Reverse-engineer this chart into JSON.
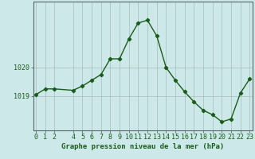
{
  "x": [
    0,
    1,
    2,
    4,
    5,
    6,
    7,
    8,
    9,
    10,
    11,
    12,
    13,
    14,
    15,
    16,
    17,
    18,
    19,
    20,
    21,
    22,
    23
  ],
  "y": [
    1019.05,
    1019.25,
    1019.25,
    1019.2,
    1019.35,
    1019.55,
    1019.75,
    1020.3,
    1020.3,
    1021.0,
    1021.55,
    1021.65,
    1021.1,
    1020.0,
    1019.55,
    1019.15,
    1018.8,
    1018.5,
    1018.35,
    1018.1,
    1018.2,
    1019.1,
    1019.6
  ],
  "line_color": "#1a5c1a",
  "marker": "D",
  "marker_size": 2.2,
  "linewidth": 1.0,
  "background_color": "#cce8e8",
  "plot_background": "#cce8e8",
  "grid_color": "#aabbbb",
  "xlabel": "Graphe pression niveau de la mer (hPa)",
  "xlabel_color": "#1a5c1a",
  "xlabel_fontsize": 6.5,
  "tick_label_color": "#1a5c1a",
  "tick_fontsize": 6.0,
  "ylim": [
    1017.8,
    1022.3
  ],
  "ytick_values": [
    1019,
    1020
  ],
  "xtick_positions": [
    0,
    1,
    2,
    4,
    5,
    6,
    7,
    8,
    9,
    10,
    11,
    12,
    13,
    14,
    15,
    16,
    17,
    18,
    19,
    20,
    21,
    22,
    23
  ],
  "xtick_labels": [
    "0",
    "1",
    "2",
    "4",
    "5",
    "6",
    "7",
    "8",
    "9",
    "10",
    "11",
    "12",
    "13",
    "14",
    "15",
    "16",
    "17",
    "18",
    "19",
    "20",
    "21",
    "22",
    "23"
  ],
  "xlim": [
    -0.3,
    23.3
  ],
  "spine_color": "#556666"
}
